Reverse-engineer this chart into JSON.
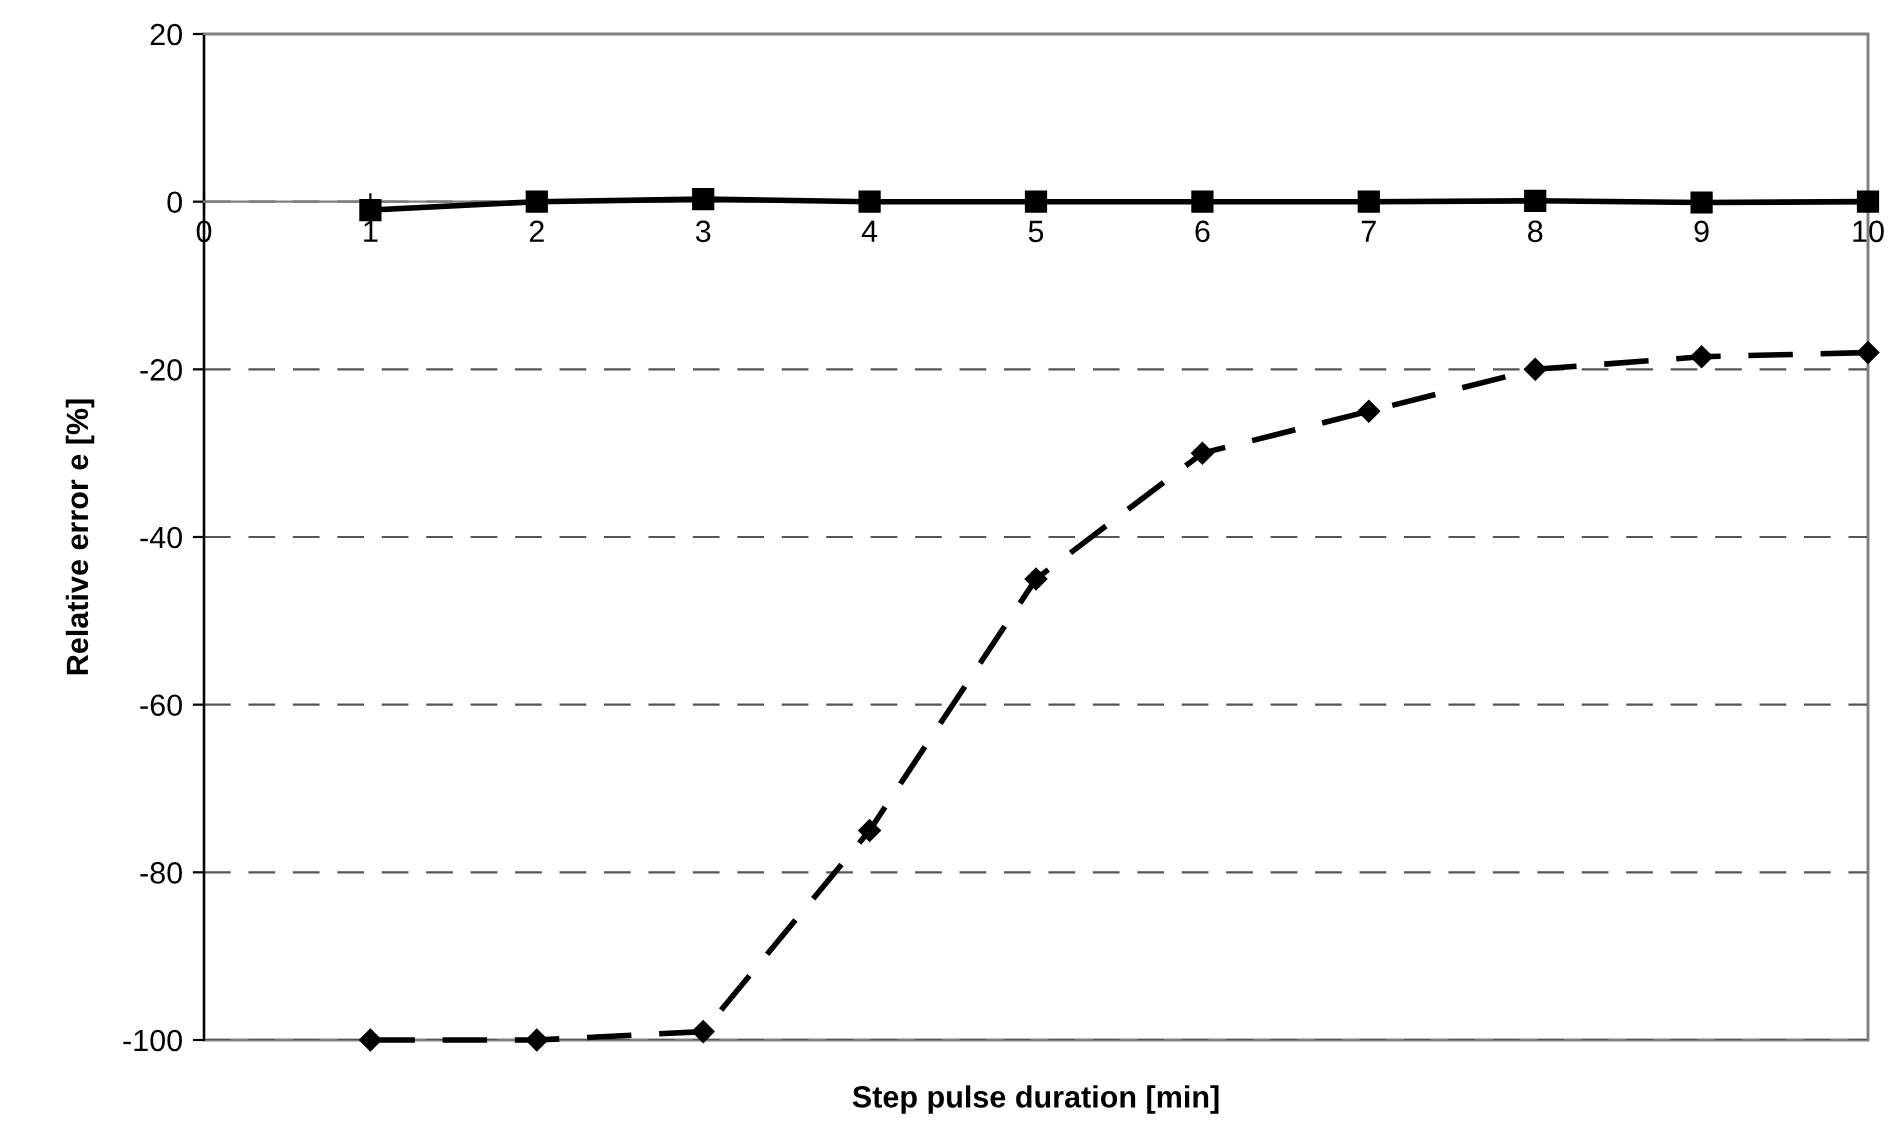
{
  "chart_data": {
    "type": "line",
    "xlabel": "Step pulse duration [min]",
    "ylabel": "Relative error e [%]",
    "xlim": [
      0,
      10
    ],
    "xticks": [
      0,
      1,
      2,
      3,
      4,
      5,
      6,
      7,
      8,
      9,
      10
    ],
    "ylim": [
      -100,
      20
    ],
    "yticks": [
      -100,
      -80,
      -60,
      -40,
      -20,
      0,
      20
    ],
    "grid": "y",
    "legend": false,
    "series": [
      {
        "color": "#000000",
        "marker": "square",
        "line_style": "solid",
        "x": [
          1,
          2,
          3,
          4,
          5,
          6,
          7,
          8,
          9,
          10
        ],
        "values": [
          -1,
          0,
          0.3,
          0,
          0,
          0,
          0,
          0.1,
          -0.1,
          0
        ]
      },
      {
        "color": "#000000",
        "marker": "diamond",
        "line_style": "dashed",
        "x": [
          1,
          2,
          3,
          4,
          5,
          6,
          7,
          8,
          9,
          10
        ],
        "values": [
          -100,
          -100,
          -99,
          -75,
          -45,
          -30,
          -25,
          -20,
          -18.5,
          -18
        ]
      }
    ]
  }
}
